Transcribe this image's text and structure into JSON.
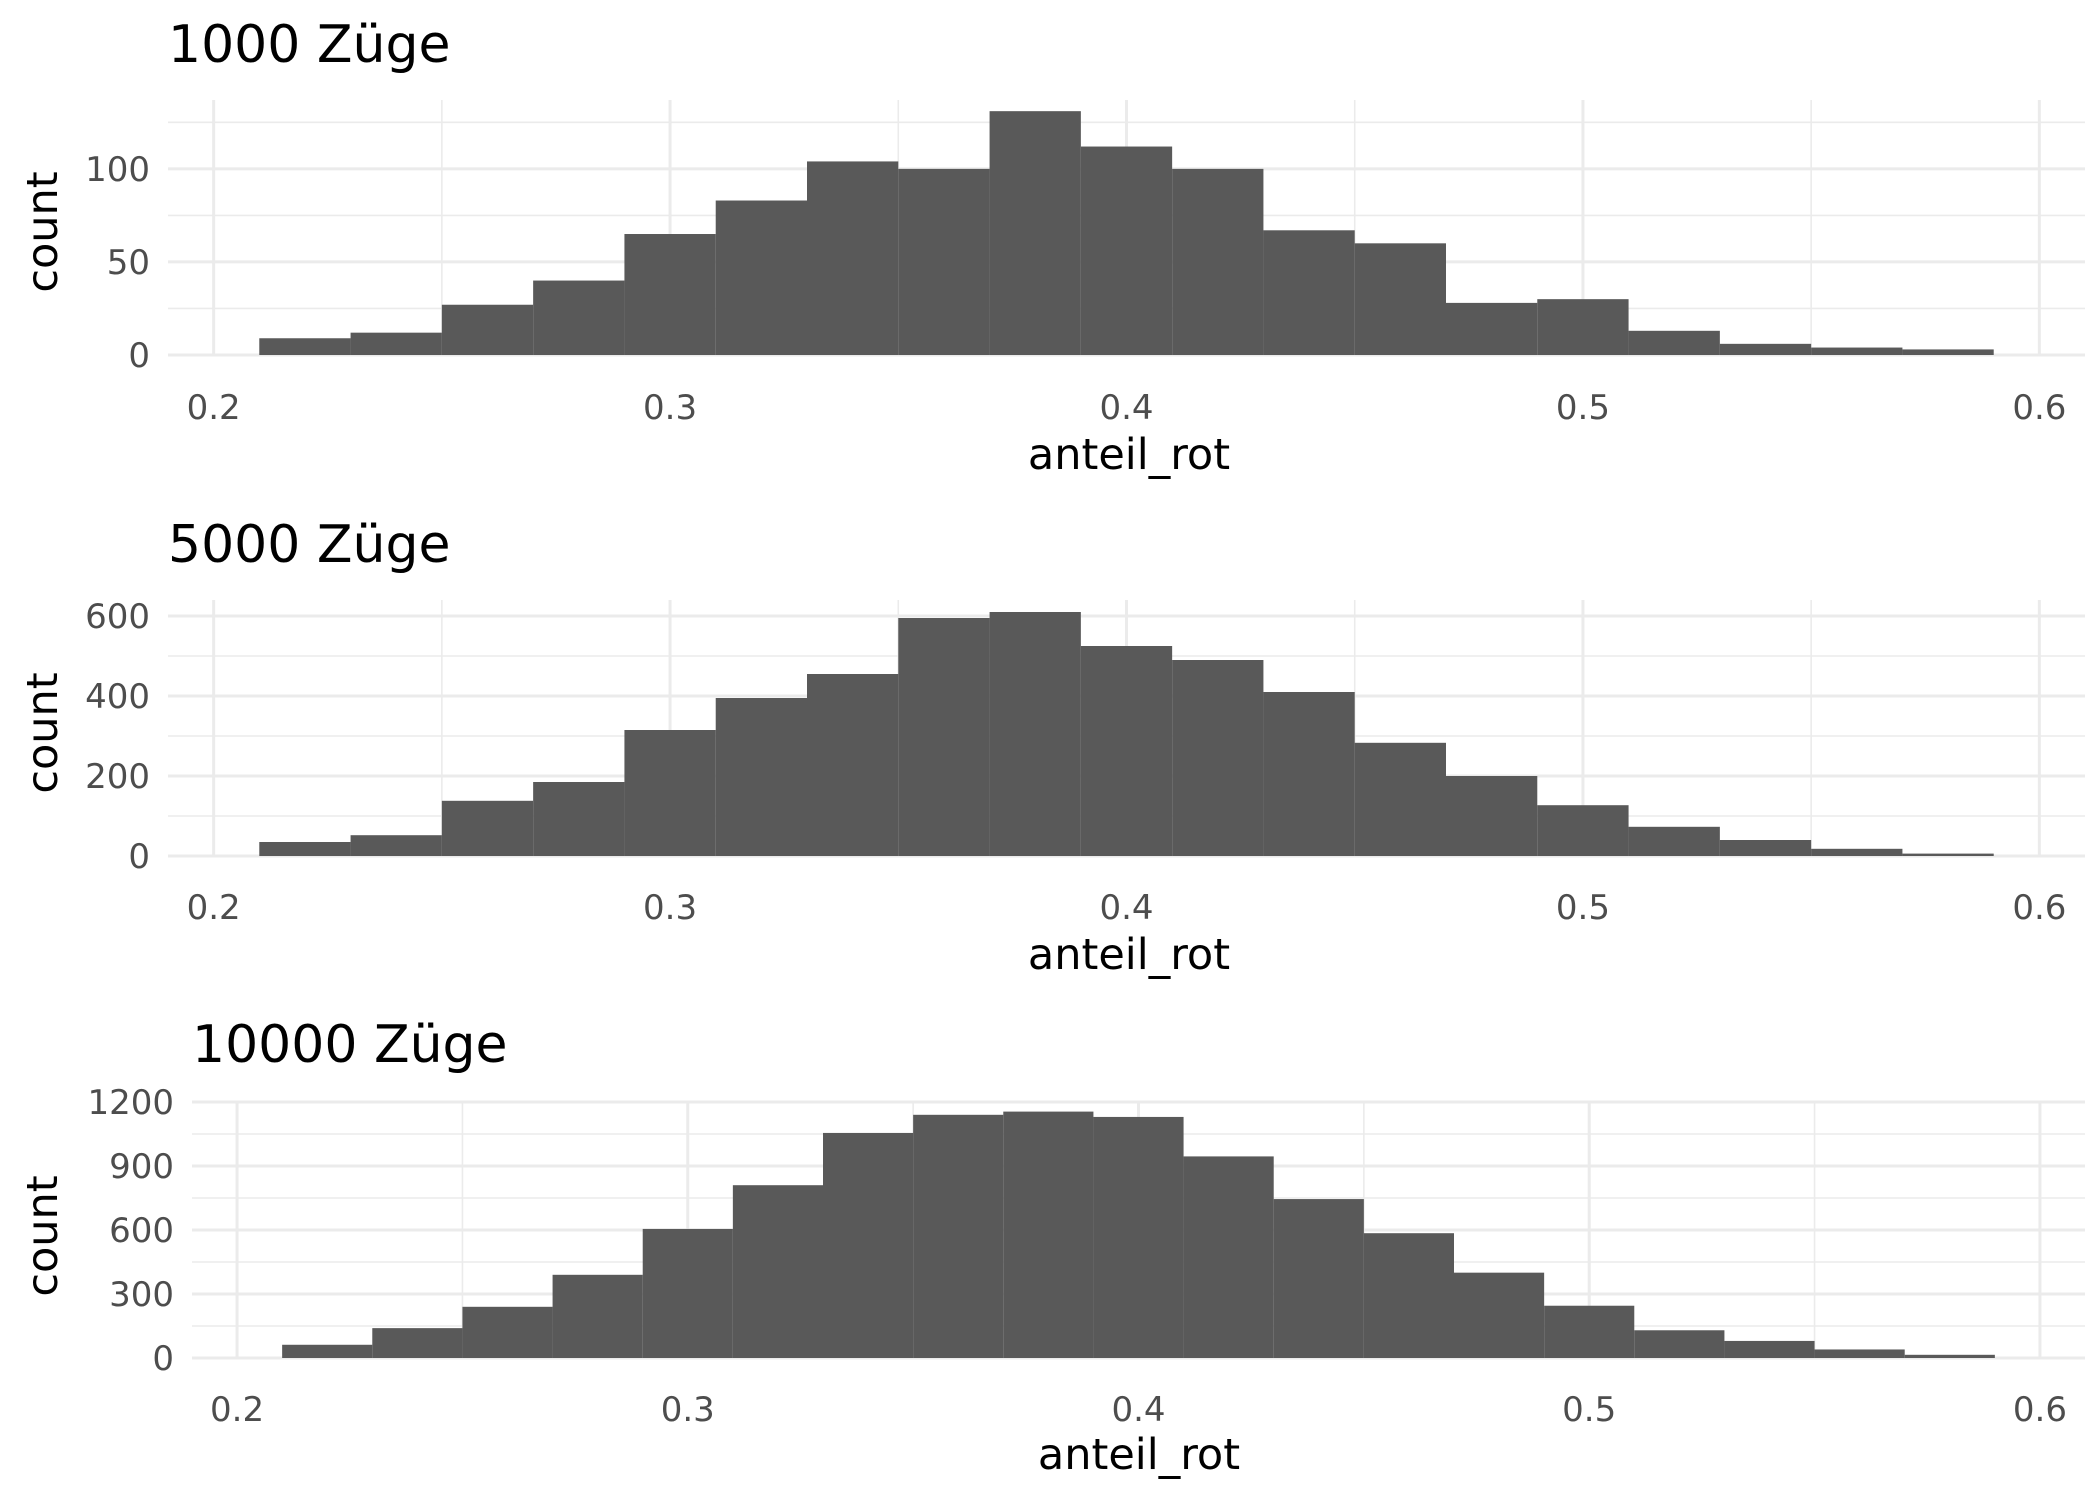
{
  "chart_data": [
    {
      "type": "bar",
      "title": "1000 Züge",
      "xlabel": "anteil_rot",
      "ylabel": "count",
      "xlim": [
        0.19,
        0.61
      ],
      "ylim": [
        0,
        137
      ],
      "xticks": [
        0.2,
        0.3,
        0.4,
        0.5,
        0.6
      ],
      "xtick_labels": [
        "0.2",
        "0.3",
        "0.4",
        "0.5",
        "0.6"
      ],
      "yticks": [
        0,
        50,
        100
      ],
      "ytick_labels": [
        "0",
        "50",
        "100"
      ],
      "grid": true,
      "bin_edges": [
        0.21,
        0.23,
        0.25,
        0.27,
        0.29,
        0.31,
        0.33,
        0.35,
        0.37,
        0.39,
        0.41,
        0.43,
        0.45,
        0.47,
        0.49,
        0.51,
        0.53,
        0.55,
        0.57,
        0.59
      ],
      "values": [
        9,
        12,
        27,
        40,
        65,
        83,
        104,
        100,
        131,
        112,
        100,
        67,
        60,
        28,
        30,
        13,
        6,
        4,
        3
      ]
    },
    {
      "type": "bar",
      "title": "5000 Züge",
      "xlabel": "anteil_rot",
      "ylabel": "count",
      "xlim": [
        0.19,
        0.61
      ],
      "ylim": [
        0,
        640
      ],
      "xticks": [
        0.2,
        0.3,
        0.4,
        0.5,
        0.6
      ],
      "xtick_labels": [
        "0.2",
        "0.3",
        "0.4",
        "0.5",
        "0.6"
      ],
      "yticks": [
        0,
        200,
        400,
        600
      ],
      "ytick_labels": [
        "0",
        "200",
        "400",
        "600"
      ],
      "grid": true,
      "bin_edges": [
        0.21,
        0.23,
        0.25,
        0.27,
        0.29,
        0.31,
        0.33,
        0.35,
        0.37,
        0.39,
        0.41,
        0.43,
        0.45,
        0.47,
        0.49,
        0.51,
        0.53,
        0.55,
        0.57,
        0.59
      ],
      "values": [
        35,
        52,
        138,
        185,
        315,
        395,
        455,
        595,
        610,
        525,
        490,
        410,
        283,
        200,
        127,
        73,
        40,
        18,
        6
      ]
    },
    {
      "type": "bar",
      "title": "10000 Züge",
      "xlabel": "anteil_rot",
      "ylabel": "count",
      "xlim": [
        0.19,
        0.61
      ],
      "ylim": [
        0,
        1200
      ],
      "xticks": [
        0.2,
        0.3,
        0.4,
        0.5,
        0.6
      ],
      "xtick_labels": [
        "0.2",
        "0.3",
        "0.4",
        "0.5",
        "0.6"
      ],
      "yticks": [
        0,
        300,
        600,
        900,
        1200
      ],
      "ytick_labels": [
        "0",
        "300",
        "600",
        "900",
        "1200"
      ],
      "grid": true,
      "bin_edges": [
        0.21,
        0.23,
        0.25,
        0.27,
        0.29,
        0.31,
        0.33,
        0.35,
        0.37,
        0.39,
        0.41,
        0.43,
        0.45,
        0.47,
        0.49,
        0.51,
        0.53,
        0.55,
        0.57,
        0.59
      ],
      "values": [
        62,
        140,
        240,
        390,
        605,
        810,
        1055,
        1140,
        1155,
        1130,
        945,
        745,
        585,
        400,
        245,
        130,
        80,
        40,
        15
      ]
    }
  ],
  "colors": {
    "bar": "#595959",
    "grid": "#ebebeb",
    "tick_text": "#4d4d4d",
    "text": "#000000"
  }
}
